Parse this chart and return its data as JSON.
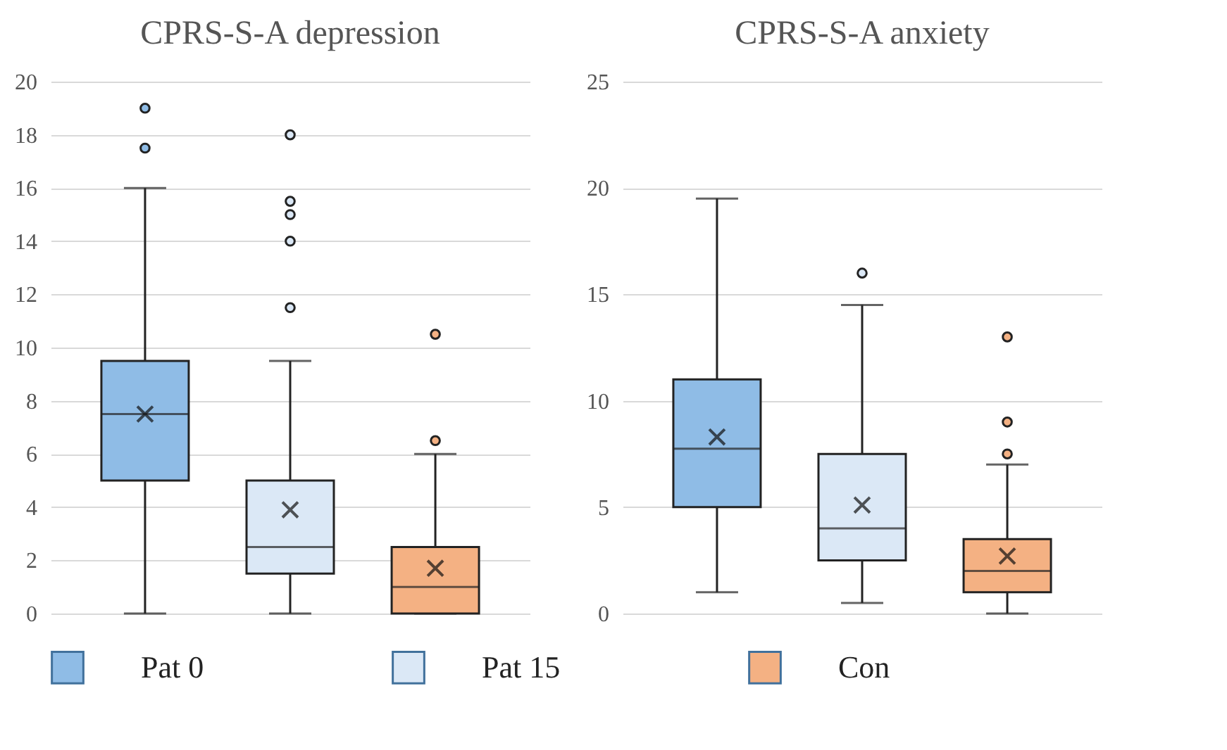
{
  "chart_data": [
    {
      "type": "box",
      "title": "CPRS-S-A depression",
      "categories": [
        null
      ],
      "ylim": [
        0,
        20
      ],
      "yticks": [
        0,
        2,
        4,
        6,
        8,
        10,
        12,
        14,
        16,
        18,
        20
      ],
      "grid": "y",
      "legend": "bottom",
      "marker": "circle",
      "series": [
        {
          "name": "Pat 0",
          "color": "#8fbce6",
          "boxes": [
            {
              "low": 0,
              "q1": 5,
              "median": 7.5,
              "q3": 9.5,
              "high": 16,
              "mean": 7.5,
              "outliers": [
                17.5,
                19
              ]
            }
          ]
        },
        {
          "name": "Pat 15",
          "color": "#dbe8f6",
          "boxes": [
            {
              "low": 0,
              "q1": 1.5,
              "median": 2.5,
              "q3": 5,
              "high": 9.5,
              "mean": 3.9,
              "outliers": [
                11.5,
                14,
                15,
                15.5,
                18
              ]
            }
          ]
        },
        {
          "name": "Con",
          "color": "#f4b183",
          "boxes": [
            {
              "low": 0,
              "q1": 0,
              "median": 1,
              "q3": 2.5,
              "high": 6,
              "mean": 1.7,
              "outliers": [
                6.5,
                10.5
              ]
            }
          ]
        }
      ]
    },
    {
      "type": "box",
      "title": "CPRS-S-A anxiety",
      "categories": [
        null
      ],
      "ylim": [
        0,
        25
      ],
      "yticks": [
        0,
        5,
        10,
        15,
        20,
        25
      ],
      "grid": "y",
      "legend": "bottom",
      "marker": "circle",
      "series": [
        {
          "name": "Pat 0",
          "color": "#8fbce6",
          "boxes": [
            {
              "low": 1,
              "q1": 5,
              "median": 7.75,
              "q3": 11,
              "high": 19.5,
              "mean": 8.3
            }
          ]
        },
        {
          "name": "Pat 15",
          "color": "#dbe8f6",
          "boxes": [
            {
              "low": 0.5,
              "q1": 2.5,
              "median": 4,
              "q3": 7.5,
              "high": 14.5,
              "mean": 5.1,
              "outliers": [
                16
              ]
            }
          ]
        },
        {
          "name": "Con",
          "color": "#f4b183",
          "boxes": [
            {
              "low": 0,
              "q1": 1,
              "median": 2,
              "q3": 3.5,
              "high": 7,
              "mean": 2.7,
              "outliers": [
                7.5,
                9,
                13
              ]
            }
          ]
        }
      ]
    }
  ]
}
